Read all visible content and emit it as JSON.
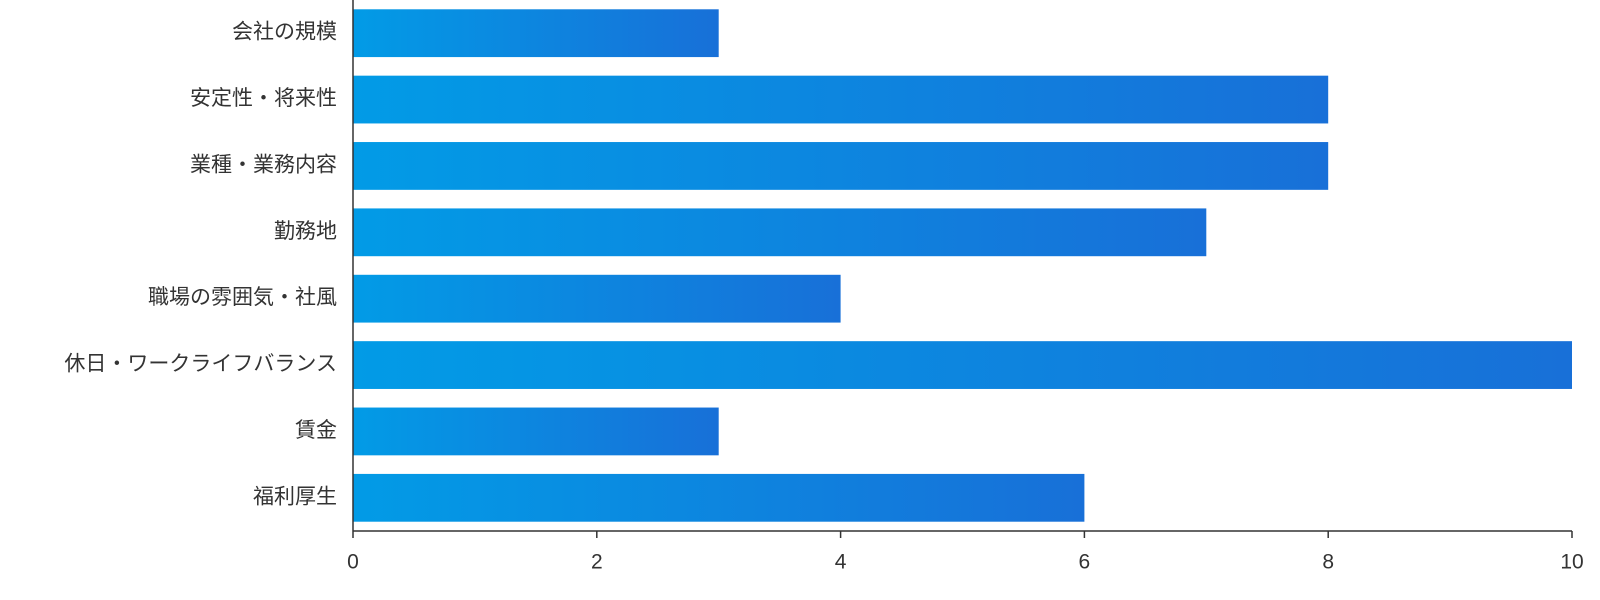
{
  "chart_data": {
    "type": "barh",
    "categories": [
      "会社の規模",
      "安定性・将来性",
      "業種・業務内容",
      "勤務地",
      "職場の雰囲気・社風",
      "休日・ワークライフバランス",
      "賃金",
      "福利厚生"
    ],
    "values": [
      3,
      8,
      8,
      7,
      4,
      10,
      3,
      6
    ],
    "gradient": [
      "#029be6",
      "#1870d8"
    ],
    "xlim": [
      0,
      10
    ],
    "xticks": [
      0,
      2,
      4,
      6,
      8,
      10
    ]
  }
}
